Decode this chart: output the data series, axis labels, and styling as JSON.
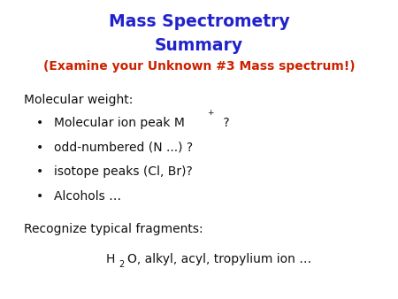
{
  "title_line1": "Mass Spectrometry",
  "title_line2": "Summary",
  "subtitle": "(Examine your Unknown #3 Mass spectrum!)",
  "title_color": "#2222cc",
  "subtitle_color": "#cc2200",
  "body_color": "#111111",
  "bg_color": "#ffffff",
  "title_fontsize": 13.5,
  "subtitle_fontsize": 10,
  "body_fontsize": 10,
  "section1_header": "Molecular weight:",
  "bullets": [
    "odd-numbered (N ...) ?",
    "isotope peaks (Cl, Br)?",
    "Alcohols …"
  ],
  "section2_header": "Recognize typical fragments:",
  "font_family": "Arial"
}
